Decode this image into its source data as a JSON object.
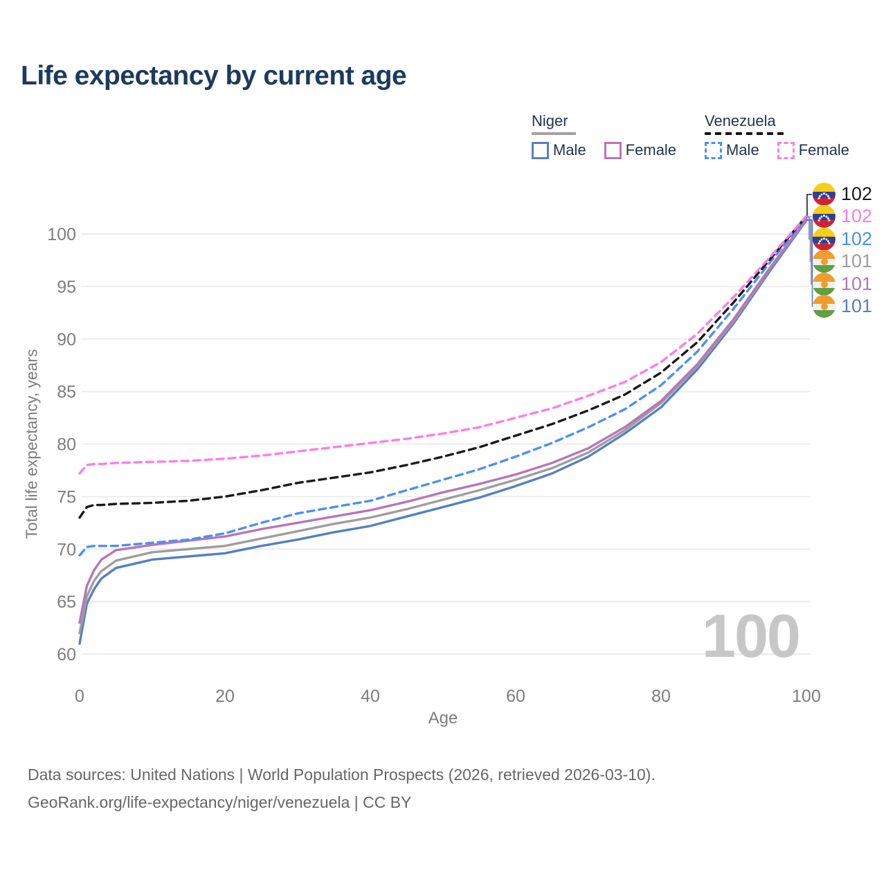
{
  "title": "Life expectancy by current age",
  "legend": {
    "groups": [
      {
        "label": "Niger",
        "line_style": "solid",
        "underline_color": "#a3a3a3",
        "items": [
          {
            "label": "Male",
            "color": "#5580c2",
            "dashed": false
          },
          {
            "label": "Female",
            "color": "#b875ba",
            "dashed": false
          }
        ]
      },
      {
        "label": "Venezuela",
        "line_style": "dashed",
        "underline_color": "#141414",
        "items": [
          {
            "label": "Male",
            "color": "#4a90f5",
            "dashed": true
          },
          {
            "label": "Female",
            "color": "#ff7ce5",
            "dashed": true
          }
        ]
      }
    ]
  },
  "chart_data": {
    "type": "line",
    "title": "Life expectancy by current age",
    "xlabel": "Age",
    "ylabel": "Total life expectancy, years",
    "xlim": [
      0,
      100
    ],
    "ylim": [
      60,
      102
    ],
    "x_ticks": [
      0,
      20,
      40,
      60,
      80,
      100
    ],
    "y_ticks": [
      60,
      65,
      70,
      75,
      80,
      85,
      90,
      95,
      100
    ],
    "grid": "horizontal",
    "legend_position": "top-right",
    "ages": [
      0,
      1,
      2,
      3,
      5,
      10,
      15,
      20,
      25,
      30,
      35,
      40,
      45,
      50,
      55,
      60,
      65,
      70,
      75,
      80,
      85,
      90,
      95,
      100
    ],
    "series": [
      {
        "name": "Venezuela (both sexes)",
        "color": "#1a1a1a",
        "dashed": true,
        "values": [
          73.0,
          74.0,
          74.2,
          74.2,
          74.3,
          74.4,
          74.6,
          75.0,
          75.6,
          76.3,
          76.8,
          77.3,
          78.0,
          78.8,
          79.7,
          80.8,
          81.9,
          83.2,
          84.7,
          86.8,
          89.7,
          93.5,
          97.6,
          101.7
        ]
      },
      {
        "name": "Venezuela Female",
        "color": "#ff7ce5",
        "dashed": true,
        "values": [
          77.2,
          78.0,
          78.1,
          78.1,
          78.2,
          78.3,
          78.4,
          78.6,
          78.9,
          79.3,
          79.7,
          80.1,
          80.5,
          81.0,
          81.6,
          82.5,
          83.4,
          84.6,
          85.9,
          87.8,
          90.5,
          94.0,
          97.8,
          101.7
        ]
      },
      {
        "name": "Venezuela Male",
        "color": "#4a90f5",
        "dashed": true,
        "values": [
          69.4,
          70.2,
          70.3,
          70.3,
          70.3,
          70.6,
          70.9,
          71.5,
          72.5,
          73.4,
          74.0,
          74.6,
          75.6,
          76.6,
          77.6,
          78.8,
          80.1,
          81.6,
          83.3,
          85.6,
          88.8,
          92.9,
          97.3,
          101.6
        ]
      },
      {
        "name": "Niger (both sexes)",
        "color": "#9e9e9e",
        "dashed": false,
        "values": [
          62.0,
          65.5,
          67.0,
          67.9,
          68.9,
          69.7,
          70.0,
          70.3,
          71.0,
          71.7,
          72.4,
          73.0,
          73.8,
          74.7,
          75.6,
          76.6,
          77.7,
          79.2,
          81.3,
          83.9,
          87.4,
          91.7,
          96.7,
          101.4
        ]
      },
      {
        "name": "Niger Female",
        "color": "#b875ba",
        "dashed": false,
        "values": [
          63.0,
          66.5,
          68.0,
          69.0,
          69.9,
          70.4,
          70.8,
          71.2,
          71.9,
          72.5,
          73.1,
          73.7,
          74.5,
          75.4,
          76.2,
          77.1,
          78.2,
          79.6,
          81.6,
          84.1,
          87.6,
          91.9,
          96.8,
          101.4
        ]
      },
      {
        "name": "Niger Male",
        "color": "#5580c2",
        "dashed": false,
        "values": [
          61.0,
          64.8,
          66.2,
          67.2,
          68.2,
          69.0,
          69.3,
          69.6,
          70.3,
          70.9,
          71.6,
          72.2,
          73.1,
          74.0,
          74.9,
          76.0,
          77.2,
          78.8,
          81.0,
          83.5,
          87.1,
          91.5,
          96.5,
          101.3
        ]
      }
    ]
  },
  "annotations": [
    {
      "country": "Venezuela",
      "value": "102",
      "color": "#1a1a1a"
    },
    {
      "country": "Venezuela",
      "value": "102",
      "color": "#ff7ce5"
    },
    {
      "country": "Venezuela",
      "value": "102",
      "color": "#4a90f5"
    },
    {
      "country": "Niger",
      "value": "101",
      "color": "#9e9e9e"
    },
    {
      "country": "Niger",
      "value": "101",
      "color": "#b875ba"
    },
    {
      "country": "Niger",
      "value": "101",
      "color": "#5580c2"
    }
  ],
  "watermark": "100",
  "footer": {
    "line1": "Data sources: United Nations | World Population Prospects (2026, retrieved 2026-03-10).",
    "line2": "GeoRank.org/life-expectancy/niger/venezuela | CC BY"
  }
}
